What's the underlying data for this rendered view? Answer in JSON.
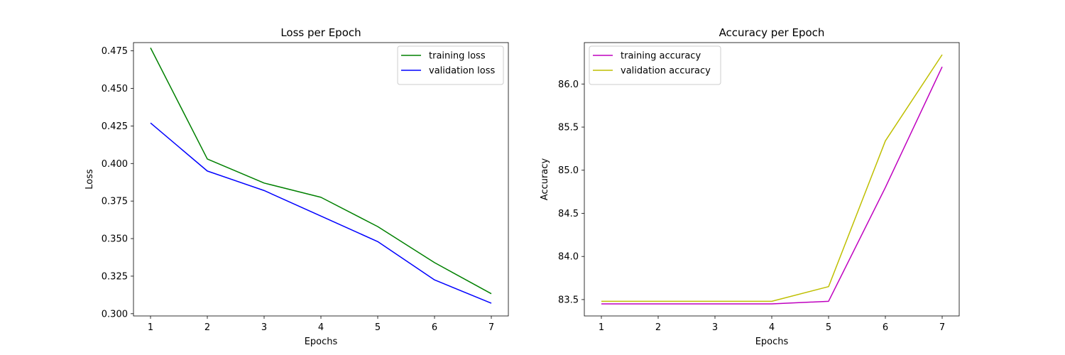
{
  "chart_data": [
    {
      "type": "line",
      "title": "Loss per Epoch",
      "xlabel": "Epochs",
      "ylabel": "Loss",
      "x": [
        1,
        2,
        3,
        4,
        5,
        6,
        7
      ],
      "xlim": [
        0.7,
        7.3
      ],
      "ylim": [
        0.2985,
        0.4805
      ],
      "xticks": [
        "1",
        "2",
        "3",
        "4",
        "5",
        "6",
        "7"
      ],
      "yticks": [
        "0.300",
        "0.325",
        "0.350",
        "0.375",
        "0.400",
        "0.425",
        "0.450",
        "0.475"
      ],
      "ytick_values": [
        0.3,
        0.325,
        0.35,
        0.375,
        0.4,
        0.425,
        0.45,
        0.475
      ],
      "grid": false,
      "legend_position": "top-right",
      "series": [
        {
          "name": "training loss",
          "color": "#008000",
          "values": [
            0.477,
            0.403,
            0.387,
            0.3775,
            0.358,
            0.334,
            0.3133
          ]
        },
        {
          "name": "validation loss",
          "color": "#0000ff",
          "values": [
            0.427,
            0.395,
            0.382,
            0.365,
            0.348,
            0.3225,
            0.307
          ]
        }
      ]
    },
    {
      "type": "line",
      "title": "Accuracy per Epoch",
      "xlabel": "Epochs",
      "ylabel": "Accuracy",
      "x": [
        1,
        2,
        3,
        4,
        5,
        6,
        7
      ],
      "xlim": [
        0.7,
        7.3
      ],
      "ylim": [
        83.31,
        86.48
      ],
      "xticks": [
        "1",
        "2",
        "3",
        "4",
        "5",
        "6",
        "7"
      ],
      "yticks": [
        "83.5",
        "84.0",
        "84.5",
        "85.0",
        "85.5",
        "86.0"
      ],
      "ytick_values": [
        83.5,
        84.0,
        84.5,
        85.0,
        85.5,
        86.0
      ],
      "grid": false,
      "legend_position": "top-left",
      "series": [
        {
          "name": "training accuracy",
          "color": "#bf00bf",
          "values": [
            83.45,
            83.45,
            83.45,
            83.45,
            83.48,
            84.8,
            86.2
          ]
        },
        {
          "name": "validation accuracy",
          "color": "#bfbf00",
          "values": [
            83.48,
            83.48,
            83.48,
            83.48,
            83.65,
            85.34,
            86.34
          ]
        }
      ]
    }
  ]
}
